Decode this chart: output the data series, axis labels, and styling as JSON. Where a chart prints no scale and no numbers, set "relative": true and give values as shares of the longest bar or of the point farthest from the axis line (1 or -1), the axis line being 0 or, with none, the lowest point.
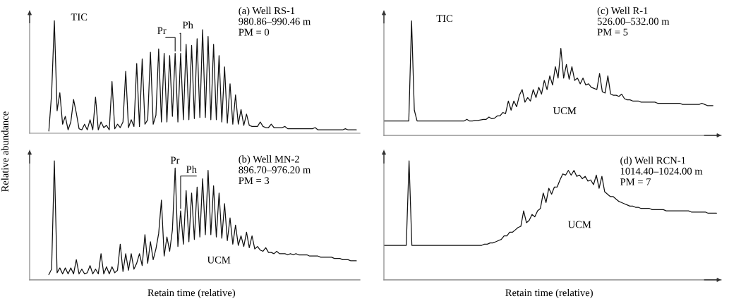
{
  "chart_data": [
    {
      "type": "line",
      "relative": true,
      "ylabel": "Relative abundance",
      "categories": [
        null,
        null,
        null,
        null,
        null,
        null,
        null,
        null,
        null,
        null,
        null,
        null,
        null,
        null,
        null,
        null,
        null,
        null,
        null,
        null,
        null,
        null,
        null,
        null,
        null,
        null,
        null,
        null,
        null,
        null,
        null,
        null,
        null,
        null,
        null,
        null,
        null,
        null,
        null,
        null,
        null,
        null,
        null,
        null,
        null,
        null,
        null,
        null,
        null,
        null,
        null,
        null,
        null,
        null,
        null,
        null,
        null,
        null,
        null,
        null,
        null,
        null,
        null,
        null,
        null,
        null,
        null,
        null,
        null,
        null,
        null,
        null,
        null,
        null,
        null,
        null,
        null,
        null,
        null,
        null,
        null,
        null,
        null,
        null,
        null,
        null,
        null,
        null,
        null,
        null,
        null,
        null,
        null,
        null,
        null,
        null,
        null,
        null,
        null,
        null,
        null,
        null,
        null,
        null,
        null,
        null,
        null,
        null,
        null,
        null,
        null,
        null,
        null,
        null,
        null,
        null,
        null,
        null,
        null,
        null
      ],
      "series": [
        {
          "color": "#111111",
          "values": [
            null,
            null,
            null,
            null,
            null,
            null,
            null,
            0.02,
            0.35,
            1.0,
            0.2,
            0.36,
            0.08,
            0.15,
            0.03,
            0.1,
            0.3,
            0.18,
            0.04,
            0.03,
            0.08,
            0.03,
            0.12,
            0.03,
            0.32,
            0.03,
            0.1,
            0.05,
            0.07,
            0.03,
            0.46,
            0.04,
            0.08,
            0.05,
            0.1,
            0.55,
            0.05,
            0.12,
            0.06,
            0.62,
            0.06,
            0.66,
            0.08,
            0.12,
            0.72,
            0.08,
            0.16,
            0.75,
            0.1,
            0.71,
            0.1,
            0.69,
            0.15,
            0.71,
            0.1,
            0.71,
            0.12,
            0.79,
            0.12,
            0.78,
            0.13,
            0.84,
            0.14,
            0.92,
            0.14,
            0.86,
            0.12,
            0.79,
            0.12,
            0.69,
            0.1,
            0.59,
            0.09,
            0.44,
            0.08,
            0.34,
            0.08,
            0.21,
            0.07,
            0.17,
            0.07,
            0.06,
            0.06,
            0.06,
            0.1,
            0.06,
            0.05,
            0.05,
            0.08,
            0.05,
            0.05,
            0.05,
            0.05,
            0.06,
            0.04,
            0.04,
            0.04,
            0.04,
            0.04,
            0.04,
            0.04,
            0.04,
            0.04,
            0.04,
            0.05,
            0.03,
            0.03,
            0.03,
            0.03,
            0.03,
            0.03,
            0.03,
            0.03,
            0.03,
            0.03,
            0.04,
            0.03,
            0.03,
            0.03,
            0.03
          ]
        }
      ],
      "annotations": [
        "TIC",
        "(a) Well RS-1\n980.86–990.46 m\nPM = 0",
        "Pr",
        "Ph"
      ]
    },
    {
      "type": "line",
      "relative": true,
      "xlabel": "Retain time (relative)",
      "categories": [
        null,
        null,
        null,
        null,
        null,
        null,
        null,
        null,
        null,
        null,
        null,
        null,
        null,
        null,
        null,
        null,
        null,
        null,
        null,
        null,
        null,
        null,
        null,
        null,
        null,
        null,
        null,
        null,
        null,
        null,
        null,
        null,
        null,
        null,
        null,
        null,
        null,
        null,
        null,
        null,
        null,
        null,
        null,
        null,
        null,
        null,
        null,
        null,
        null,
        null,
        null,
        null,
        null,
        null,
        null,
        null,
        null,
        null,
        null,
        null,
        null,
        null,
        null,
        null,
        null,
        null,
        null,
        null,
        null,
        null,
        null,
        null,
        null,
        null,
        null,
        null,
        null,
        null,
        null,
        null,
        null,
        null,
        null,
        null,
        null,
        null,
        null,
        null,
        null,
        null,
        null,
        null,
        null,
        null,
        null,
        null,
        null,
        null,
        null,
        null,
        null,
        null,
        null,
        null,
        null,
        null,
        null,
        null,
        null,
        null,
        null,
        null,
        null,
        null,
        null,
        null,
        null,
        null,
        null,
        null
      ],
      "series": [
        {
          "color": "#111111",
          "values": [
            null,
            null,
            null,
            null,
            null,
            null,
            null,
            0.044,
            0.09,
            1.0,
            0.06,
            0.1,
            0.05,
            0.1,
            0.05,
            0.1,
            0.05,
            0.17,
            0.05,
            0.09,
            0.05,
            0.06,
            0.12,
            0.05,
            0.09,
            0.05,
            0.22,
            0.05,
            0.11,
            0.05,
            0.11,
            0.06,
            0.08,
            0.3,
            0.07,
            0.22,
            0.08,
            0.22,
            0.09,
            0.14,
            0.22,
            0.12,
            0.38,
            0.14,
            0.32,
            0.17,
            0.26,
            0.39,
            0.67,
            0.2,
            0.36,
            0.24,
            0.42,
            0.94,
            0.28,
            0.58,
            0.3,
            0.75,
            0.32,
            0.73,
            0.34,
            0.78,
            0.36,
            0.85,
            0.38,
            0.92,
            0.38,
            0.79,
            0.36,
            0.73,
            0.35,
            0.64,
            0.33,
            0.52,
            0.3,
            0.46,
            0.29,
            0.37,
            0.28,
            0.4,
            0.27,
            0.37,
            0.26,
            0.28,
            0.25,
            0.24,
            0.27,
            0.23,
            0.23,
            0.22,
            0.24,
            0.22,
            0.22,
            0.22,
            0.21,
            0.22,
            0.21,
            0.22,
            0.21,
            0.21,
            0.21,
            0.21,
            0.2,
            0.2,
            0.2,
            0.2,
            0.19,
            0.19,
            0.19,
            0.19,
            0.19,
            0.18,
            0.18,
            0.18,
            0.17,
            0.17,
            0.17,
            0.16,
            0.16,
            0.16
          ]
        }
      ],
      "annotations": [
        "(b) Well MN-2\n896.70–976.20 m\nPM = 3",
        "Pr",
        "Ph",
        "UCM"
      ]
    },
    {
      "type": "line",
      "relative": true,
      "categories": [
        null,
        null,
        null,
        null,
        null,
        null,
        null,
        null,
        null,
        null,
        null,
        null,
        null,
        null,
        null,
        null,
        null,
        null,
        null,
        null,
        null,
        null,
        null,
        null,
        null,
        null,
        null,
        null,
        null,
        null,
        null,
        null,
        null,
        null,
        null,
        null,
        null,
        null,
        null,
        null,
        null,
        null,
        null,
        null,
        null,
        null,
        null,
        null,
        null,
        null,
        null,
        null,
        null,
        null,
        null,
        null,
        null,
        null,
        null,
        null,
        null,
        null,
        null,
        null,
        null,
        null,
        null,
        null,
        null,
        null,
        null,
        null,
        null,
        null,
        null,
        null,
        null,
        null,
        null,
        null,
        null,
        null,
        null,
        null,
        null,
        null,
        null,
        null,
        null,
        null,
        null,
        null,
        null,
        null,
        null,
        null,
        null,
        null,
        null,
        null,
        null,
        null,
        null,
        null,
        null,
        null,
        null,
        null,
        null,
        null,
        null,
        null,
        null,
        null,
        null,
        null,
        null,
        null,
        null,
        null
      ],
      "series": [
        {
          "color": "#111111",
          "values": [
            0.125,
            0.125,
            0.125,
            0.125,
            0.125,
            0.125,
            0.125,
            0.125,
            0.125,
            0.125,
            1.0,
            0.22,
            0.125,
            0.125,
            0.125,
            0.125,
            0.125,
            0.125,
            0.125,
            0.125,
            0.125,
            0.125,
            0.125,
            0.125,
            0.125,
            0.125,
            0.125,
            0.125,
            0.125,
            0.125,
            0.14,
            0.125,
            0.125,
            0.13,
            0.13,
            0.135,
            0.14,
            0.14,
            0.16,
            0.145,
            0.15,
            0.17,
            0.17,
            0.2,
            0.19,
            0.3,
            0.22,
            0.3,
            0.25,
            0.35,
            0.4,
            0.29,
            0.33,
            0.3,
            0.4,
            0.33,
            0.42,
            0.36,
            0.48,
            0.4,
            0.52,
            0.44,
            0.6,
            0.5,
            0.76,
            0.5,
            0.62,
            0.49,
            0.6,
            0.48,
            0.5,
            0.45,
            0.5,
            0.44,
            0.45,
            0.42,
            0.41,
            0.4,
            0.54,
            0.38,
            0.37,
            0.52,
            0.36,
            0.35,
            0.35,
            0.34,
            0.36,
            0.32,
            0.31,
            0.31,
            0.3,
            0.3,
            0.3,
            0.29,
            0.29,
            0.29,
            0.29,
            0.29,
            0.29,
            0.28,
            0.28,
            0.28,
            0.28,
            0.28,
            0.28,
            0.28,
            0.28,
            0.28,
            0.27,
            0.27,
            0.27,
            0.27,
            0.27,
            0.27,
            0.27,
            0.28,
            0.27,
            0.26,
            0.26,
            0.26
          ]
        }
      ],
      "annotations": [
        "TIC",
        "(c) Well R-1\n526.00–532.00 m\nPM = 5",
        "UCM"
      ]
    },
    {
      "type": "line",
      "relative": true,
      "xlabel": "Retain time (relative)",
      "categories": [
        null,
        null,
        null,
        null,
        null,
        null,
        null,
        null,
        null,
        null,
        null,
        null,
        null,
        null,
        null,
        null,
        null,
        null,
        null,
        null,
        null,
        null,
        null,
        null,
        null,
        null,
        null,
        null,
        null,
        null,
        null,
        null,
        null,
        null,
        null,
        null,
        null,
        null,
        null,
        null,
        null,
        null,
        null,
        null,
        null,
        null,
        null,
        null,
        null,
        null,
        null,
        null,
        null,
        null,
        null,
        null,
        null,
        null,
        null,
        null,
        null,
        null,
        null,
        null,
        null,
        null,
        null,
        null,
        null,
        null,
        null,
        null,
        null,
        null,
        null,
        null,
        null,
        null,
        null,
        null,
        null,
        null,
        null,
        null,
        null,
        null,
        null,
        null,
        null,
        null,
        null,
        null,
        null,
        null,
        null,
        null,
        null,
        null,
        null,
        null,
        null,
        null,
        null,
        null,
        null,
        null,
        null,
        null,
        null,
        null,
        null,
        null,
        null,
        null,
        null,
        null,
        null,
        null,
        null,
        null
      ],
      "series": [
        {
          "color": "#111111",
          "values": [
            0.29,
            0.29,
            0.29,
            0.29,
            0.29,
            0.29,
            0.29,
            0.29,
            0.29,
            1.0,
            0.29,
            0.29,
            0.29,
            0.29,
            0.29,
            0.29,
            0.29,
            0.29,
            0.29,
            0.29,
            0.29,
            0.29,
            0.29,
            0.29,
            0.29,
            0.29,
            0.29,
            0.29,
            0.29,
            0.29,
            0.29,
            0.29,
            0.29,
            0.29,
            0.29,
            0.29,
            0.3,
            0.3,
            0.31,
            0.31,
            0.32,
            0.33,
            0.34,
            0.37,
            0.37,
            0.4,
            0.4,
            0.42,
            0.44,
            0.45,
            0.58,
            0.48,
            0.5,
            0.55,
            0.53,
            0.58,
            0.6,
            0.73,
            0.65,
            0.77,
            0.72,
            0.78,
            0.78,
            0.84,
            0.89,
            0.88,
            0.92,
            0.88,
            0.92,
            0.87,
            0.88,
            0.85,
            0.87,
            0.83,
            0.84,
            0.8,
            0.88,
            0.77,
            0.87,
            0.74,
            0.72,
            0.7,
            0.7,
            0.68,
            0.66,
            0.65,
            0.64,
            0.63,
            0.62,
            0.62,
            0.61,
            0.61,
            0.6,
            0.6,
            0.6,
            0.6,
            0.59,
            0.59,
            0.59,
            0.59,
            0.59,
            0.58,
            0.58,
            0.58,
            0.58,
            0.58,
            0.58,
            0.58,
            0.58,
            0.58,
            0.57,
            0.57,
            0.57,
            0.57,
            0.57,
            0.57,
            0.56,
            0.56,
            0.56,
            0.56
          ]
        }
      ],
      "annotations": [
        "(d) Well RCN-1\n1014.40–1024.00 m\nPM = 7",
        "UCM"
      ]
    }
  ]
}
